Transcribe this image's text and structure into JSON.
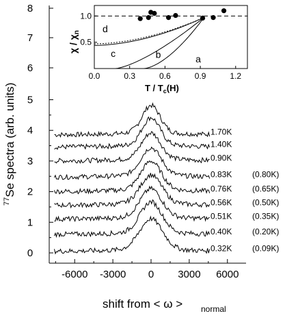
{
  "chart_data": [
    {
      "type": "line",
      "xlabel_main": "shift from < ω >",
      "xlabel_sub": "normal",
      "ylabel_sup": "77",
      "ylabel_main": "Se spectra (arb. units)",
      "xlim": [
        -8000,
        8000
      ],
      "ylim": [
        -0.2,
        5.5
      ],
      "xticks": [
        -6000,
        -3000,
        0,
        3000,
        6000
      ],
      "yticks": [
        0,
        1,
        2,
        3,
        4,
        5
      ],
      "series": [
        {
          "label": "1.70K",
          "label2": "",
          "offset": 3.8,
          "peak": 0.85,
          "width": 700
        },
        {
          "label": "1.40K",
          "label2": "",
          "offset": 3.4,
          "peak": 0.85,
          "width": 700
        },
        {
          "label": "0.90K",
          "label2": "",
          "offset": 2.95,
          "peak": 0.8,
          "width": 750
        },
        {
          "label": "0.83K",
          "label2": "(0.80K)",
          "offset": 2.42,
          "peak": 0.85,
          "width": 800
        },
        {
          "label": "0.76K",
          "label2": "(0.65K)",
          "offset": 1.95,
          "peak": 0.88,
          "width": 800
        },
        {
          "label": "0.56K",
          "label2": "(0.50K)",
          "offset": 1.5,
          "peak": 0.88,
          "width": 850
        },
        {
          "label": "0.51K",
          "label2": "(0.35K)",
          "offset": 1.05,
          "peak": 0.88,
          "width": 850
        },
        {
          "label": "0.40K",
          "label2": "(0.20K)",
          "offset": 0.55,
          "peak": 0.95,
          "width": 850
        },
        {
          "label": "0.32K",
          "label2": "(0.09K)",
          "offset": 0.0,
          "peak": 0.95,
          "width": 900
        }
      ]
    },
    {
      "type": "scatter",
      "xlabel": "T / T",
      "xlabel_sub": "c",
      "xlabel_tail": "(H)",
      "ylabel": "χ / χ",
      "ylabel_sub": "n",
      "xlim": [
        0.0,
        1.3
      ],
      "ylim": [
        0.0,
        1.2
      ],
      "xticks": [
        "0.0",
        "0.3",
        "0.6",
        "0.9",
        "1.2"
      ],
      "yticks": [
        "0.5",
        "1.0"
      ],
      "points": [
        {
          "x": 0.39,
          "y": 0.95
        },
        {
          "x": 0.46,
          "y": 0.97
        },
        {
          "x": 0.48,
          "y": 1.07
        },
        {
          "x": 0.51,
          "y": 1.05
        },
        {
          "x": 0.63,
          "y": 0.97
        },
        {
          "x": 0.69,
          "y": 1.01
        },
        {
          "x": 0.92,
          "y": 0.96
        },
        {
          "x": 1.01,
          "y": 0.97
        },
        {
          "x": 1.1,
          "y": 1.1
        }
      ],
      "curve_labels": [
        "a",
        "b",
        "c",
        "d"
      ],
      "reference_line": 1.0
    }
  ],
  "left_axis_labels": [
    "8",
    "7",
    "6"
  ]
}
